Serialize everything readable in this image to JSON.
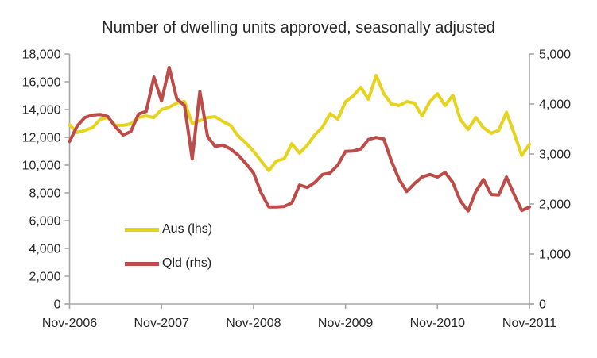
{
  "chart_data": {
    "type": "line",
    "title": "Number of dwelling units approved, seasonally adjusted",
    "grid": false,
    "legend_position": "inside-lower-left",
    "x_start": "Nov-2006",
    "x_end": "Nov-2011",
    "x_tick_labels": [
      "Nov-2006",
      "Nov-2007",
      "Nov-2008",
      "Nov-2009",
      "Nov-2010",
      "Nov-2011"
    ],
    "x_tick_month_indices": [
      0,
      12,
      24,
      36,
      48,
      60
    ],
    "left_axis": {
      "range": [
        0,
        18000
      ],
      "step": 2000,
      "tick_labels": [
        "0",
        "2,000",
        "4,000",
        "6,000",
        "8,000",
        "10,000",
        "12,000",
        "14,000",
        "16,000",
        "18,000"
      ]
    },
    "right_axis": {
      "range": [
        0,
        5000
      ],
      "step": 1000,
      "tick_labels": [
        "0",
        "1,000",
        "2,000",
        "3,000",
        "4,000",
        "5,000"
      ]
    },
    "series": [
      {
        "name": "Aus (lhs)",
        "axis": "left",
        "color": "#E6D31C",
        "values": [
          12900,
          12350,
          12500,
          12700,
          13300,
          13430,
          12860,
          12860,
          12970,
          13430,
          13540,
          13430,
          14000,
          14170,
          14460,
          14570,
          13000,
          13200,
          13430,
          13480,
          13140,
          12860,
          12100,
          11600,
          11000,
          10300,
          9600,
          10290,
          10460,
          11540,
          10860,
          11430,
          12170,
          12740,
          13710,
          13310,
          14570,
          14970,
          15600,
          14740,
          16460,
          15140,
          14400,
          14290,
          14570,
          14460,
          13540,
          14570,
          15140,
          14290,
          15030,
          13260,
          12570,
          13430,
          12690,
          12290,
          12500,
          13800,
          12300,
          10700,
          11500
        ]
      },
      {
        "name": "Qld (rhs)",
        "axis": "right",
        "color": "#BE4B48",
        "values": [
          3250,
          3560,
          3730,
          3780,
          3790,
          3750,
          3540,
          3380,
          3450,
          3800,
          3850,
          4540,
          4060,
          4730,
          4100,
          3970,
          2900,
          4250,
          3350,
          3150,
          3180,
          3100,
          2980,
          2810,
          2620,
          2220,
          1940,
          1940,
          1950,
          2020,
          2380,
          2330,
          2430,
          2590,
          2620,
          2780,
          3050,
          3060,
          3100,
          3290,
          3330,
          3300,
          2860,
          2490,
          2250,
          2410,
          2540,
          2590,
          2540,
          2630,
          2430,
          2060,
          1860,
          2250,
          2490,
          2190,
          2180,
          2540,
          2190,
          1870,
          1940
        ]
      }
    ],
    "colors": {
      "axis_line": "#A6A6A6",
      "text": "#262626"
    }
  }
}
